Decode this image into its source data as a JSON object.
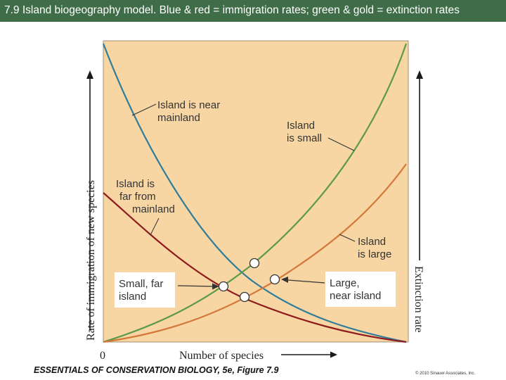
{
  "title": "7.9 Island biogeography model.  Blue & red = immigration rates;  green & gold = extinction rates",
  "axes": {
    "y_left_label": "Rate of immigration of new species",
    "y_right_label": "Extinction rate",
    "x_label": "Number of species",
    "origin_label": "0"
  },
  "curve_labels": {
    "near_mainland": [
      "Island is near",
      "mainland"
    ],
    "small": [
      "Island",
      "is small"
    ],
    "far_from_mainland": [
      "Island is",
      "far from",
      "mainland"
    ],
    "large": [
      "Island",
      "is large"
    ]
  },
  "callouts": {
    "small_far": [
      "Small, far",
      "island"
    ],
    "large_near": [
      "Large,",
      "near island"
    ]
  },
  "footer": {
    "source": "ESSENTIALS OF CONSERVATION BIOLOGY, 5e, Figure 7.9",
    "copyright": "© 2010 Sinauer Associates, Inc."
  },
  "colors": {
    "title_bar": "#3f6d47",
    "panel": "#f7d6a3",
    "blue_curve": "#2f7d9b",
    "red_curve": "#8e1c1c",
    "green_curve": "#5a9a4a",
    "gold_curve": "#d4783a",
    "axis": "#1a1a1a"
  },
  "legend_meaning": {
    "immigration": [
      "blue",
      "red"
    ],
    "extinction": [
      "green",
      "gold"
    ]
  }
}
